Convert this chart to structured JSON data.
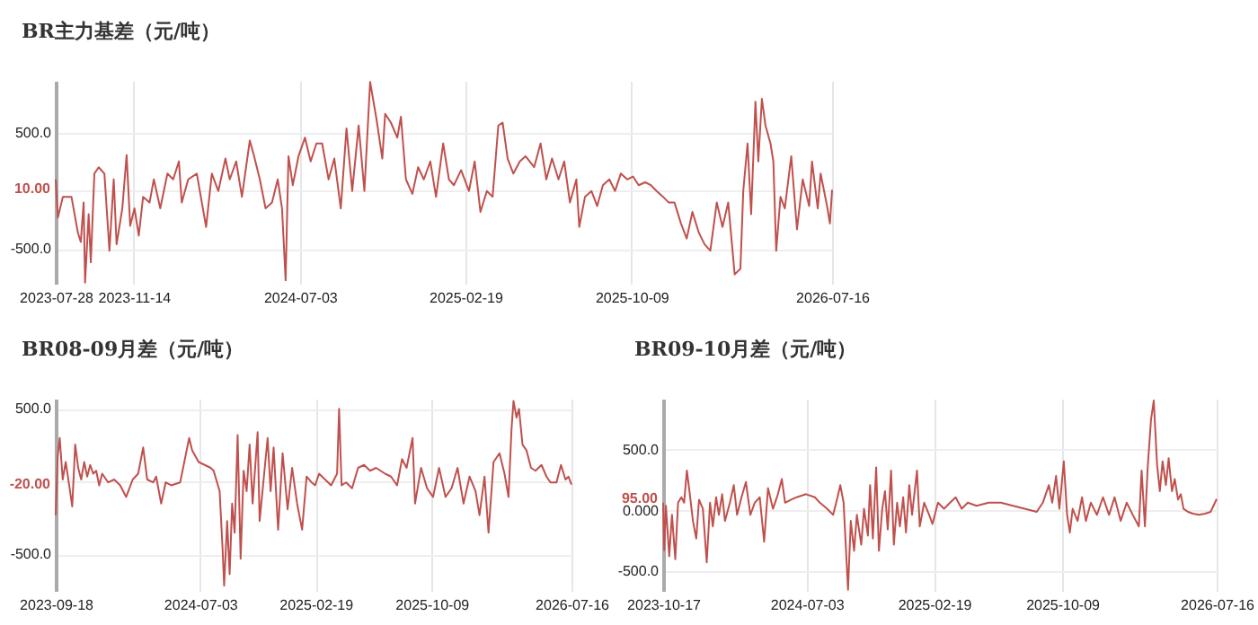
{
  "chart_data": [
    {
      "type": "line",
      "title": "BR主力基差（元/吨）",
      "grid": true,
      "xlim": [
        "2023-07-28",
        "2026-07-16"
      ],
      "xticks": [
        "2023-07-28",
        "2023-11-14",
        "2024-07-03",
        "2025-02-19",
        "2025-10-09",
        "2026-07-16"
      ],
      "ylim": [
        -800,
        950
      ],
      "yticks": [
        {
          "value": 500,
          "label": "500.0"
        },
        {
          "value": 0,
          "label": null
        },
        {
          "value": -500,
          "label": "-500.0"
        }
      ],
      "annotations": [
        {
          "text": "10.00",
          "x": "2023-07-28",
          "y": 10
        }
      ],
      "x": [
        "2023-07-28",
        "2023-07-31",
        "2023-08-07",
        "2023-08-19",
        "2023-08-28",
        "2023-09-01",
        "2023-09-05",
        "2023-09-07",
        "2023-09-12",
        "2023-09-15",
        "2023-09-20",
        "2023-09-26",
        "2023-10-04",
        "2023-10-11",
        "2023-10-17",
        "2023-10-21",
        "2023-10-29",
        "2023-11-04",
        "2023-11-09",
        "2023-11-15",
        "2023-11-21",
        "2023-11-27",
        "2023-12-06",
        "2023-12-12",
        "2023-12-21",
        "2023-12-31",
        "2024-01-08",
        "2024-01-16",
        "2024-01-20",
        "2024-01-29",
        "2024-02-10",
        "2024-02-23",
        "2024-03-02",
        "2024-03-11",
        "2024-03-21",
        "2024-03-27",
        "2024-04-05",
        "2024-04-13",
        "2024-04-24",
        "2024-04-30",
        "2024-05-08",
        "2024-05-16",
        "2024-05-25",
        "2024-06-02",
        "2024-06-08",
        "2024-06-13",
        "2024-06-17",
        "2024-06-23",
        "2024-07-01",
        "2024-07-10",
        "2024-07-18",
        "2024-07-26",
        "2024-08-03",
        "2024-08-12",
        "2024-08-20",
        "2024-08-29",
        "2024-09-06",
        "2024-09-14",
        "2024-09-23",
        "2024-10-01",
        "2024-10-09",
        "2024-10-18",
        "2024-10-26",
        "2024-10-30",
        "2024-11-07",
        "2024-11-16",
        "2024-11-21",
        "2024-11-28",
        "2024-12-07",
        "2024-12-15",
        "2024-12-23",
        "2025-01-01",
        "2025-01-09",
        "2025-01-19",
        "2025-01-27",
        "2025-02-03",
        "2025-02-13",
        "2025-02-24",
        "2025-03-04",
        "2025-03-12",
        "2025-03-21",
        "2025-03-29",
        "2025-04-06",
        "2025-04-12",
        "2025-04-19",
        "2025-04-27",
        "2025-05-06",
        "2025-05-14",
        "2025-05-26",
        "2025-06-04",
        "2025-06-12",
        "2025-06-20",
        "2025-06-29",
        "2025-07-07",
        "2025-07-15",
        "2025-07-24",
        "2025-07-28",
        "2025-08-05",
        "2025-08-14",
        "2025-08-22",
        "2025-08-30",
        "2025-09-08",
        "2025-09-16",
        "2025-09-24",
        "2025-10-03",
        "2025-10-11",
        "2025-10-19",
        "2025-10-28",
        "2025-11-05",
        "2025-11-13",
        "2025-11-22",
        "2025-11-30",
        "2025-12-08",
        "2025-12-17",
        "2025-12-25",
        "2026-01-02",
        "2026-01-11",
        "2026-01-19",
        "2026-01-27",
        "2026-02-05",
        "2026-02-13",
        "2026-02-21",
        "2026-03-02",
        "2026-03-10",
        "2026-03-14",
        "2026-03-20",
        "2026-03-25",
        "2026-03-31",
        "2026-04-04",
        "2026-04-09",
        "2026-04-14",
        "2026-04-21",
        "2026-04-25",
        "2026-04-29",
        "2026-05-05",
        "2026-05-11",
        "2026-05-20",
        "2026-05-28",
        "2026-06-05",
        "2026-06-14",
        "2026-06-18",
        "2026-06-26",
        "2026-06-30",
        "2026-07-09",
        "2026-07-13",
        "2026-07-16"
      ],
      "series": [
        {
          "color": "#c0504d",
          "values": [
            100,
            -230,
            -50,
            -50,
            -360,
            -440,
            -100,
            -790,
            -200,
            -615,
            150,
            205,
            150,
            -515,
            100,
            -460,
            -150,
            310,
            -300,
            -150,
            -385,
            -50,
            -100,
            100,
            -150,
            150,
            100,
            255,
            -100,
            100,
            150,
            -310,
            150,
            0,
            280,
            100,
            255,
            -50,
            435,
            300,
            100,
            -150,
            -100,
            100,
            -150,
            -770,
            300,
            50,
            300,
            460,
            255,
            410,
            410,
            100,
            280,
            -150,
            540,
            0,
            565,
            0,
            940,
            615,
            280,
            665,
            590,
            460,
            640,
            100,
            -25,
            205,
            100,
            255,
            -50,
            410,
            100,
            50,
            180,
            0,
            255,
            -180,
            0,
            -50,
            565,
            590,
            280,
            150,
            255,
            300,
            205,
            410,
            100,
            280,
            100,
            255,
            -100,
            100,
            -310,
            -50,
            0,
            -130,
            50,
            100,
            0,
            150,
            100,
            125,
            50,
            75,
            50,
            0,
            -50,
            -100,
            -100,
            -280,
            -410,
            -180,
            -360,
            -460,
            -515,
            -100,
            -310,
            -100,
            -720,
            -670,
            0,
            410,
            -200,
            770,
            255,
            795,
            565,
            410,
            255,
            -515,
            -50,
            -150,
            300,
            -330,
            100,
            -130,
            255,
            -150,
            150,
            -130,
            -280,
            10
          ]
        }
      ]
    },
    {
      "type": "line",
      "title": "BR08-09月差（元/吨）",
      "grid": true,
      "xlim": [
        "2023-09-18",
        "2026-07-16"
      ],
      "xticks": [
        "2023-09-18",
        "2024-07-03",
        "2025-02-19",
        "2025-10-09",
        "2026-07-16"
      ],
      "ylim": [
        -750,
        570
      ],
      "yticks": [
        {
          "value": 500,
          "label": "500.0"
        },
        {
          "value": 0,
          "label": null
        },
        {
          "value": -500,
          "label": "-500.0"
        }
      ],
      "annotations": [
        {
          "text": "-20.00",
          "x": "2023-09-18",
          "y": -20
        }
      ],
      "x": [
        "2023-09-18",
        "2023-09-22",
        "2023-09-26",
        "2023-10-02",
        "2023-10-08",
        "2023-10-15",
        "2023-10-21",
        "2023-10-27",
        "2023-11-02",
        "2023-11-08",
        "2023-11-14",
        "2023-11-20",
        "2023-11-26",
        "2023-12-02",
        "2023-12-08",
        "2023-12-14",
        "2023-12-20",
        "2024-01-01",
        "2024-01-13",
        "2024-01-25",
        "2024-02-06",
        "2024-02-19",
        "2024-03-01",
        "2024-03-11",
        "2024-03-19",
        "2024-03-31",
        "2024-04-06",
        "2024-04-16",
        "2024-04-25",
        "2024-05-06",
        "2024-05-24",
        "2024-06-11",
        "2024-06-17",
        "2024-06-30",
        "2024-07-12",
        "2024-07-24",
        "2024-07-30",
        "2024-08-11",
        "2024-08-17",
        "2024-08-20",
        "2024-08-26",
        "2024-08-31",
        "2024-09-05",
        "2024-09-10",
        "2024-09-16",
        "2024-09-22",
        "2024-09-28",
        "2024-10-04",
        "2024-10-10",
        "2024-10-16",
        "2024-10-26",
        "2024-10-30",
        "2024-11-07",
        "2024-11-15",
        "2024-11-21",
        "2024-11-27",
        "2024-12-06",
        "2024-12-15",
        "2024-12-25",
        "2025-01-03",
        "2025-01-13",
        "2025-01-23",
        "2025-02-01",
        "2025-02-11",
        "2025-02-18",
        "2025-02-26",
        "2025-03-10",
        "2025-03-22",
        "2025-04-03",
        "2025-04-07",
        "2025-04-12",
        "2025-04-21",
        "2025-05-03",
        "2025-05-15",
        "2025-05-27",
        "2025-06-08",
        "2025-06-20",
        "2025-07-08",
        "2025-07-20",
        "2025-08-01",
        "2025-08-11",
        "2025-08-20",
        "2025-09-01",
        "2025-09-06",
        "2025-09-18",
        "2025-09-30",
        "2025-10-12",
        "2025-10-24",
        "2025-11-06",
        "2025-11-18",
        "2025-11-30",
        "2025-12-12",
        "2025-12-24",
        "2026-01-05",
        "2026-01-13",
        "2026-01-23",
        "2026-01-31",
        "2026-02-10",
        "2026-02-22",
        "2026-03-04",
        "2026-03-12",
        "2026-03-18",
        "2026-03-22",
        "2026-03-28",
        "2026-04-02",
        "2026-04-09",
        "2026-04-17",
        "2026-04-26",
        "2026-05-05",
        "2026-05-17",
        "2026-05-27",
        "2026-06-04",
        "2026-06-16",
        "2026-06-25",
        "2026-07-04",
        "2026-07-10",
        "2026-07-16"
      ],
      "series": [
        {
          "color": "#c0504d",
          "values": [
            -230,
            175,
            300,
            15,
            135,
            -25,
            -170,
            255,
            95,
            15,
            135,
            35,
            115,
            55,
            75,
            -25,
            55,
            -5,
            15,
            -25,
            -105,
            15,
            55,
            235,
            15,
            -5,
            35,
            -150,
            -5,
            -25,
            -5,
            300,
            215,
            135,
            115,
            95,
            75,
            -65,
            -470,
            -715,
            -270,
            -635,
            -150,
            -350,
            320,
            -530,
            75,
            -65,
            255,
            -150,
            340,
            -270,
            15,
            300,
            -65,
            235,
            -330,
            195,
            -190,
            95,
            -150,
            -330,
            35,
            -5,
            -25,
            55,
            15,
            -25,
            55,
            500,
            -25,
            -5,
            -45,
            95,
            115,
            75,
            95,
            55,
            35,
            -25,
            155,
            95,
            300,
            -150,
            95,
            -45,
            -105,
            95,
            -105,
            -45,
            95,
            -150,
            35,
            -65,
            -230,
            35,
            -350,
            135,
            195,
            55,
            -105,
            360,
            555,
            440,
            500,
            255,
            215,
            95,
            75,
            115,
            35,
            -5,
            -5,
            115,
            15,
            35,
            -20
          ]
        }
      ]
    },
    {
      "type": "line",
      "title": "BR09-10月差（元/吨）",
      "grid": true,
      "xlim": [
        "2023-10-17",
        "2026-07-16"
      ],
      "xticks": [
        "2023-10-17",
        "2024-07-03",
        "2025-02-19",
        "2025-10-09",
        "2026-07-16"
      ],
      "ylim": [
        -660,
        920
      ],
      "yticks": [
        {
          "value": 500,
          "label": "500.0"
        },
        {
          "value": 0,
          "label": "0.000"
        },
        {
          "value": -500,
          "label": "-500.0"
        }
      ],
      "annotations": [
        {
          "text": "95.00",
          "x": "2023-10-17",
          "y": 95
        }
      ],
      "x": [
        "2023-10-17",
        "2023-10-19",
        "2023-10-22",
        "2023-10-28",
        "2023-11-02",
        "2023-11-08",
        "2023-11-13",
        "2023-11-19",
        "2023-11-24",
        "2023-11-29",
        "2023-12-05",
        "2023-12-10",
        "2023-12-16",
        "2023-12-21",
        "2023-12-28",
        "2024-01-04",
        "2024-01-10",
        "2024-01-15",
        "2024-01-21",
        "2024-01-26",
        "2024-02-01",
        "2024-02-06",
        "2024-02-15",
        "2024-02-22",
        "2024-02-28",
        "2024-03-07",
        "2024-03-15",
        "2024-03-23",
        "2024-03-31",
        "2024-04-09",
        "2024-04-17",
        "2024-04-24",
        "2024-05-03",
        "2024-05-12",
        "2024-05-19",
        "2024-05-25",
        "2024-06-05",
        "2024-06-15",
        "2024-07-02",
        "2024-07-18",
        "2024-07-27",
        "2024-08-09",
        "2024-08-20",
        "2024-08-28",
        "2024-09-02",
        "2024-09-08",
        "2024-09-16",
        "2024-09-21",
        "2024-09-27",
        "2024-10-02",
        "2024-10-10",
        "2024-10-15",
        "2024-10-22",
        "2024-10-26",
        "2024-10-31",
        "2024-11-06",
        "2024-11-11",
        "2024-11-17",
        "2024-11-22",
        "2024-11-27",
        "2024-12-03",
        "2024-12-08",
        "2024-12-14",
        "2024-12-19",
        "2024-12-25",
        "2024-12-30",
        "2025-01-05",
        "2025-01-10",
        "2025-01-19",
        "2025-01-24",
        "2025-02-01",
        "2025-02-10",
        "2025-02-16",
        "2025-02-26",
        "2025-03-09",
        "2025-03-20",
        "2025-03-30",
        "2025-04-10",
        "2025-04-21",
        "2025-05-07",
        "2025-05-29",
        "2025-06-20",
        "2025-07-12",
        "2025-08-02",
        "2025-08-24",
        "2025-09-04",
        "2025-09-15",
        "2025-09-21",
        "2025-09-28",
        "2025-10-04",
        "2025-10-12",
        "2025-10-18",
        "2025-10-23",
        "2025-10-28",
        "2025-11-06",
        "2025-11-14",
        "2025-11-21",
        "2025-11-30",
        "2025-12-11",
        "2025-12-22",
        "2026-01-02",
        "2026-01-12",
        "2026-01-23",
        "2026-02-03",
        "2026-02-14",
        "2026-02-25",
        "2026-03-02",
        "2026-03-08",
        "2026-03-13",
        "2026-03-19",
        "2026-03-24",
        "2026-03-30",
        "2026-04-04",
        "2026-04-09",
        "2026-04-15",
        "2026-04-20",
        "2026-04-26",
        "2026-05-01",
        "2026-05-07",
        "2026-05-12",
        "2026-05-17",
        "2026-05-25",
        "2026-06-03",
        "2026-06-14",
        "2026-06-25",
        "2026-07-05",
        "2026-07-16"
      ],
      "series": [
        {
          "color": "#c0504d",
          "values": [
            65,
            -325,
            40,
            -375,
            -35,
            -400,
            65,
            110,
            65,
            330,
            110,
            -85,
            -230,
            90,
            15,
            -425,
            65,
            -130,
            110,
            -35,
            135,
            -85,
            65,
            210,
            -35,
            110,
            235,
            -35,
            65,
            110,
            -255,
            185,
            15,
            135,
            260,
            65,
            90,
            110,
            135,
            110,
            65,
            15,
            -35,
            110,
            210,
            65,
            -650,
            -85,
            -330,
            -35,
            -280,
            15,
            -205,
            210,
            -230,
            355,
            -330,
            15,
            160,
            -155,
            330,
            -280,
            65,
            -130,
            110,
            -180,
            210,
            -35,
            330,
            -130,
            65,
            -35,
            -110,
            65,
            15,
            65,
            110,
            15,
            65,
            40,
            65,
            65,
            40,
            15,
            -10,
            65,
            210,
            65,
            285,
            15,
            405,
            -35,
            -180,
            15,
            -85,
            110,
            -85,
            65,
            -35,
            110,
            -35,
            110,
            -85,
            65,
            -35,
            -130,
            330,
            -130,
            355,
            745,
            905,
            380,
            160,
            405,
            210,
            430,
            160,
            260,
            90,
            135,
            15,
            -10,
            -25,
            -35,
            -25,
            -10,
            95
          ]
        }
      ]
    }
  ]
}
